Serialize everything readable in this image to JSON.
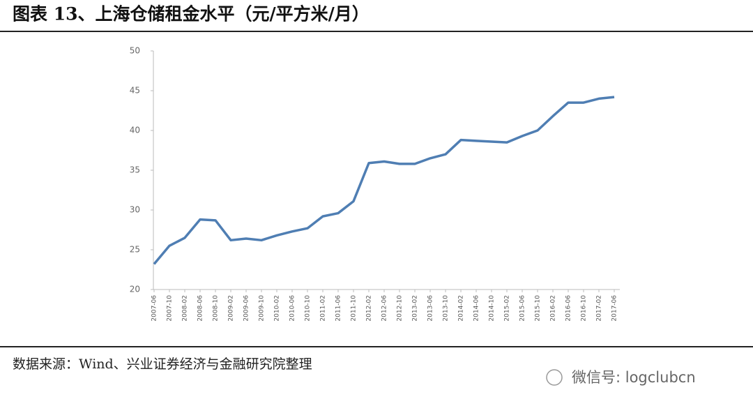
{
  "chart_data": {
    "type": "line",
    "title": "图表 13、上海仓储租金水平（元/平方米/月）",
    "source": "数据来源：Wind、兴业证券经济与金融研究院整理",
    "watermark": "微信号: logclubcn",
    "categories": [
      "2007-06",
      "2007-10",
      "2008-02",
      "2008-06",
      "2008-10",
      "2009-02",
      "2009-06",
      "2009-10",
      "2010-02",
      "2010-06",
      "2010-10",
      "2011-02",
      "2011-06",
      "2011-10",
      "2012-02",
      "2012-06",
      "2012-10",
      "2013-02",
      "2013-06",
      "2013-10",
      "2014-02",
      "2014-06",
      "2014-10",
      "2015-02",
      "2015-06",
      "2015-10",
      "2016-02",
      "2016-06",
      "2016-10",
      "2017-02",
      "2017-06"
    ],
    "values": [
      23.2,
      25.5,
      26.5,
      28.8,
      28.7,
      26.2,
      26.4,
      26.2,
      26.8,
      27.3,
      27.7,
      29.2,
      29.6,
      31.1,
      35.9,
      36.1,
      35.8,
      35.8,
      36.5,
      37.0,
      38.8,
      38.7,
      38.6,
      38.5,
      39.3,
      40.0,
      41.8,
      43.5,
      43.5,
      44.0,
      44.2
    ],
    "color": "#4f7eb3",
    "ylim": [
      20,
      50
    ],
    "yticks": [
      20,
      25,
      30,
      35,
      40,
      45,
      50
    ]
  }
}
